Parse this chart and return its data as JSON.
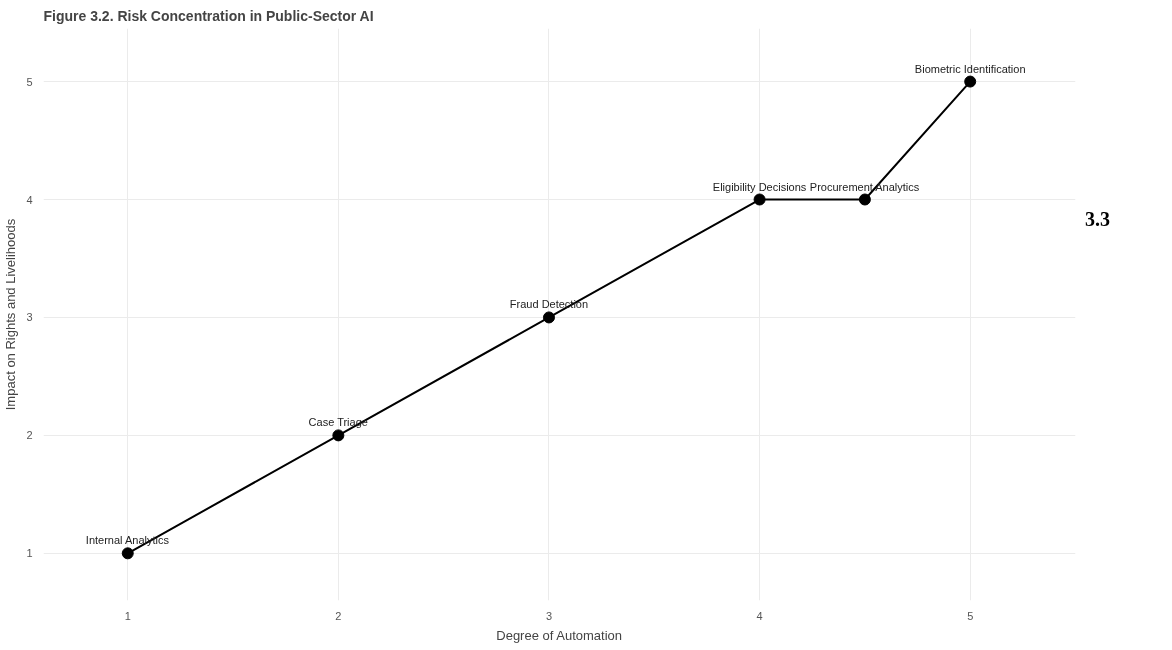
{
  "chart_data": {
    "type": "line",
    "title": "Figure 3.2. Risk Concentration in Public-Sector AI",
    "xlabel": "Degree of Automation",
    "ylabel": "Impact on Rights and Livelihoods",
    "x": [
      1,
      2,
      3,
      4,
      4.5,
      5
    ],
    "series": [
      {
        "color": "#000000",
        "values": [
          1,
          2,
          3,
          4,
          4,
          5
        ]
      }
    ],
    "xlim": [
      0.6,
      5.5
    ],
    "ylim": [
      0.6,
      5.45
    ],
    "xticks": [
      1,
      2,
      3,
      4,
      5
    ],
    "yticks": [
      1,
      2,
      3,
      4,
      5
    ],
    "grid": true,
    "marker": "circle",
    "line_style": "solid",
    "annotations": [
      {
        "text": "Internal Analytics",
        "x": 1,
        "y": 1
      },
      {
        "text": "Case Triage",
        "x": 2,
        "y": 2
      },
      {
        "text": "Fraud Detection",
        "x": 3,
        "y": 3
      },
      {
        "text": "Eligibility Decisions",
        "x": 4,
        "y": 4
      },
      {
        "text": "Procurement Analytics",
        "x": 4.5,
        "y": 4
      },
      {
        "text": "Biometric Identification",
        "x": 5,
        "y": 5
      },
      "3.3"
    ]
  }
}
